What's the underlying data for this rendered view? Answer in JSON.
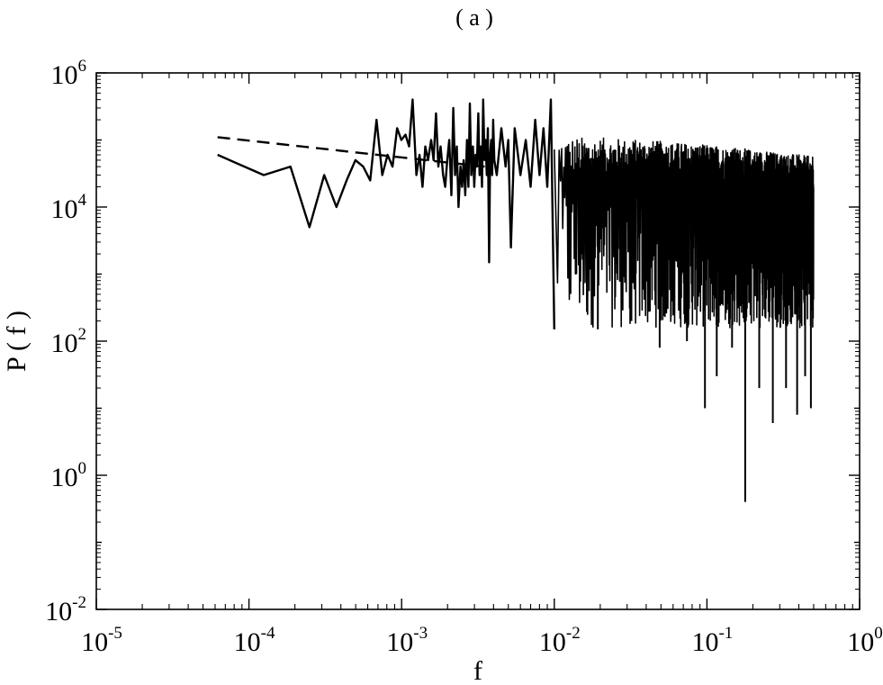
{
  "chart_data": {
    "type": "line",
    "panel_label": "( a )",
    "xlabel": "f",
    "ylabel": "P ( f )",
    "xscale": "log",
    "yscale": "log",
    "xlim": [
      1e-05,
      1
    ],
    "ylim": [
      0.01,
      1000000
    ],
    "x_ticks": [
      {
        "value": 1e-05,
        "base": "10",
        "exp": "-5"
      },
      {
        "value": 0.0001,
        "base": "10",
        "exp": "-4"
      },
      {
        "value": 0.001,
        "base": "10",
        "exp": "-3"
      },
      {
        "value": 0.01,
        "base": "10",
        "exp": "-2"
      },
      {
        "value": 0.1,
        "base": "10",
        "exp": "-1"
      },
      {
        "value": 1,
        "base": "10",
        "exp": "0"
      }
    ],
    "y_ticks": [
      {
        "value": 0.01,
        "base": "10",
        "exp": "-2"
      },
      {
        "value": 1,
        "base": "10",
        "exp": "0"
      },
      {
        "value": 100,
        "base": "10",
        "exp": "2"
      },
      {
        "value": 10000,
        "base": "10",
        "exp": "4"
      },
      {
        "value": 1000000,
        "base": "10",
        "exp": "6"
      }
    ],
    "grid": false,
    "legend": "none",
    "series": [
      {
        "style": "solid",
        "color": "#000000",
        "x": [
          6.23e-05,
          0.000125,
          0.000187,
          0.000249,
          0.000311,
          0.000374,
          0.000436,
          0.000498,
          0.00056,
          0.000623,
          0.000685,
          0.000747,
          0.000809,
          0.000872,
          0.000934,
          0.000996,
          0.00106,
          0.00112,
          0.00118,
          0.00125,
          0.00131,
          0.00137,
          0.00143,
          0.00149,
          0.00156,
          0.00162,
          0.00168,
          0.00174,
          0.0018,
          0.00187,
          0.00193,
          0.00199,
          0.00205,
          0.00212,
          0.00218,
          0.00224,
          0.0023,
          0.00236,
          0.00243,
          0.00249,
          0.00255,
          0.00261,
          0.00268,
          0.00274,
          0.0028,
          0.00286,
          0.00293,
          0.00299,
          0.00305,
          0.00311,
          0.00318,
          0.00324,
          0.0033,
          0.00336,
          0.00342,
          0.00349,
          0.00355,
          0.00361,
          0.00367,
          0.00374,
          0.0038,
          0.00386,
          0.00392,
          0.00398,
          0.00405,
          0.0042,
          0.0045,
          0.0048,
          0.005,
          0.0052,
          0.0055,
          0.006,
          0.0065,
          0.007,
          0.0075,
          0.008,
          0.0085,
          0.009,
          0.0095,
          0.01
        ],
        "y": [
          60000,
          30000,
          40000,
          5000,
          30000,
          10000,
          25000,
          50000,
          40000,
          25000,
          200000,
          30000,
          60000,
          40000,
          150000,
          100000,
          120000,
          80000,
          400000,
          30000,
          60000,
          20000,
          80000,
          50000,
          100000,
          50000,
          250000,
          40000,
          80000,
          30000,
          20000,
          50000,
          100000,
          15000,
          300000,
          30000,
          80000,
          10000,
          40000,
          20000,
          50000,
          15000,
          100000,
          20000,
          350000,
          30000,
          80000,
          20000,
          60000,
          40000,
          250000,
          30000,
          80000,
          20000,
          400000,
          50000,
          100000,
          30000,
          150000,
          1500,
          60000,
          100000,
          30000,
          200000,
          50000,
          30000,
          150000,
          40000,
          100000,
          2500,
          150000,
          30000,
          100000,
          20000,
          200000,
          30000,
          150000,
          20000,
          400000,
          150
        ]
      },
      {
        "style": "dashed",
        "color": "#000000",
        "x": [
          6.23e-05,
          0.0035
        ],
        "y": [
          110000,
          40000
        ]
      }
    ],
    "noise_band": {
      "x_range": [
        0.01,
        0.5
      ],
      "upper_envelope": 100000,
      "lower_typical": 100,
      "outliers": [
        {
          "x": 0.0193,
          "y": 150
        },
        {
          "x": 0.032,
          "y": 200
        },
        {
          "x": 0.049,
          "y": 80
        },
        {
          "x": 0.074,
          "y": 100
        },
        {
          "x": 0.097,
          "y": 10
        },
        {
          "x": 0.116,
          "y": 30
        },
        {
          "x": 0.146,
          "y": 80
        },
        {
          "x": 0.178,
          "y": 0.4
        },
        {
          "x": 0.22,
          "y": 20
        },
        {
          "x": 0.27,
          "y": 6
        },
        {
          "x": 0.33,
          "y": 20
        },
        {
          "x": 0.39,
          "y": 8
        },
        {
          "x": 0.44,
          "y": 30
        },
        {
          "x": 0.48,
          "y": 10
        }
      ]
    }
  }
}
